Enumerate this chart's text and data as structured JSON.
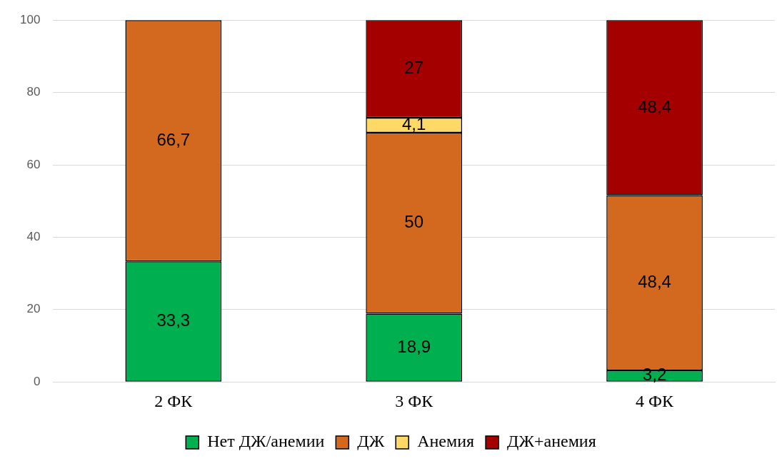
{
  "chart_data": {
    "type": "bar",
    "stacked": true,
    "categories": [
      "2 ФК",
      "3 ФК",
      "4 ФК"
    ],
    "series": [
      {
        "name": "Нет ДЖ/анемии",
        "color": "#00b050",
        "values": [
          33.3,
          18.9,
          3.2
        ],
        "value_labels": [
          "33,3",
          "18,9",
          "3,2"
        ]
      },
      {
        "name": "ДЖ",
        "color": "#d2691e",
        "values": [
          66.7,
          50,
          48.4
        ],
        "value_labels": [
          "66,7",
          "50",
          "48,4"
        ]
      },
      {
        "name": "Анемия",
        "color": "#ffd966",
        "values": [
          null,
          4.1,
          null
        ],
        "value_labels": [
          null,
          "4,1",
          null
        ]
      },
      {
        "name": "ДЖ+анемия",
        "color": "#a50000",
        "values": [
          null,
          27,
          48.4
        ],
        "value_labels": [
          null,
          "27",
          "48,4"
        ]
      }
    ],
    "ylim": [
      0,
      100
    ],
    "yticks": [
      0,
      20,
      40,
      60,
      80,
      100
    ],
    "grid": "y",
    "legend": "bottom"
  }
}
